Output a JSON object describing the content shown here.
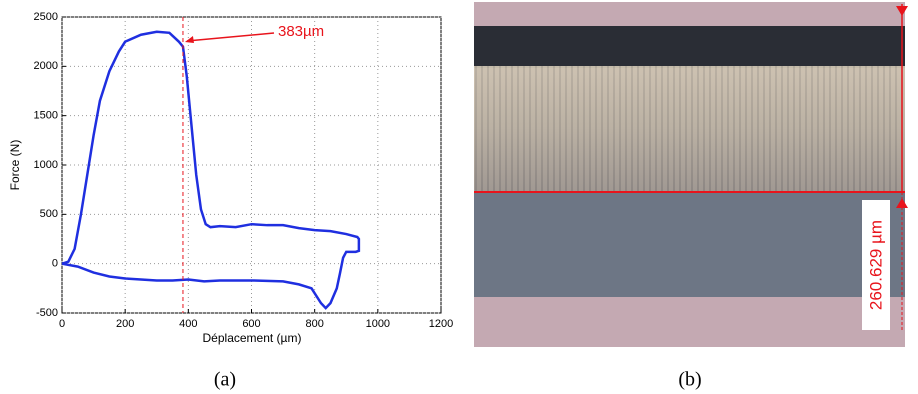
{
  "chart_data": {
    "type": "line",
    "xlabel": "Déplacement (µm)",
    "ylabel": "Force (N)",
    "x": [
      0,
      20,
      40,
      60,
      80,
      100,
      120,
      150,
      180,
      200,
      250,
      300,
      340,
      370,
      383,
      395,
      410,
      425,
      440,
      455,
      470,
      500,
      550,
      600,
      650,
      700,
      750,
      800,
      850,
      900,
      935,
      940,
      940,
      930,
      900,
      890,
      880,
      870,
      850,
      835,
      820,
      790,
      750,
      700,
      600,
      500,
      450,
      400,
      350,
      300,
      250,
      200,
      150,
      100,
      50,
      0
    ],
    "series": [
      {
        "color": "#1f2fe0",
        "values": [
          0,
          20,
          150,
          500,
          900,
          1300,
          1650,
          1950,
          2150,
          2250,
          2320,
          2350,
          2340,
          2250,
          2200,
          1900,
          1400,
          900,
          550,
          400,
          370,
          380,
          370,
          400,
          390,
          390,
          360,
          340,
          330,
          300,
          270,
          250,
          130,
          120,
          120,
          60,
          -100,
          -250,
          -400,
          -450,
          -400,
          -250,
          -210,
          -180,
          -170,
          -170,
          -180,
          -160,
          -170,
          -170,
          -160,
          -150,
          -130,
          -90,
          -30,
          0
        ]
      }
    ],
    "xlim": [
      0,
      1200
    ],
    "xticks": [
      0,
      200,
      400,
      600,
      800,
      1000,
      1200
    ],
    "ylim": [
      -500,
      2500
    ],
    "yticks": [
      -500,
      0,
      500,
      1000,
      1500,
      2000,
      2500
    ],
    "grid": true,
    "annotation": {
      "x": 383,
      "label": "383µm",
      "color": "#e8141c"
    }
  },
  "micrograph": {
    "annotation": "260.629 µm"
  },
  "captions": [
    "(a)",
    "(b)"
  ]
}
